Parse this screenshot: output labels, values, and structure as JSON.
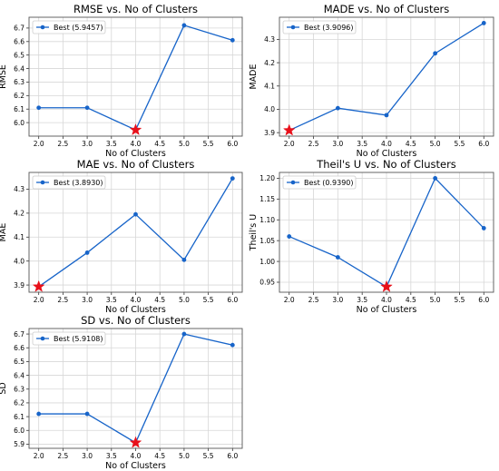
{
  "colors": {
    "line": "#1764c9",
    "star": "#e8101a",
    "grid": "#d7d7d7",
    "frame": "#555555",
    "legend_border": "#cccccc"
  },
  "chart_data": [
    {
      "type": "line",
      "title": "RMSE vs. No of Clusters",
      "xlabel": "No of Clusters",
      "ylabel": "RMSE",
      "x": [
        2.0,
        3.0,
        4.0,
        5.0,
        6.0
      ],
      "series": [
        {
          "name": "Best (5.9457)",
          "values": [
            6.11,
            6.11,
            5.9457,
            6.72,
            6.61
          ]
        }
      ],
      "best": {
        "x": 4.0,
        "y": 5.9457
      },
      "xlim": [
        1.8,
        6.2
      ],
      "ylim": [
        5.9,
        6.78
      ],
      "xticks": [
        "2.0",
        "2.5",
        "3.0",
        "3.5",
        "4.0",
        "4.5",
        "5.0",
        "5.5",
        "6.0"
      ],
      "yticks": [
        "6.0",
        "6.1",
        "6.2",
        "6.3",
        "6.4",
        "6.5",
        "6.6",
        "6.7"
      ],
      "legend": "top-left",
      "grid": true
    },
    {
      "type": "line",
      "title": "MADE vs. No of Clusters",
      "xlabel": "No of Clusters",
      "ylabel": "MADE",
      "x": [
        2.0,
        3.0,
        4.0,
        5.0,
        6.0
      ],
      "series": [
        {
          "name": "Best (3.9096)",
          "values": [
            3.9096,
            4.005,
            3.975,
            4.24,
            4.37
          ]
        }
      ],
      "best": {
        "x": 2.0,
        "y": 3.9096
      },
      "xlim": [
        1.8,
        6.2
      ],
      "ylim": [
        3.885,
        4.395
      ],
      "xticks": [
        "2.0",
        "2.5",
        "3.0",
        "3.5",
        "4.0",
        "4.5",
        "5.0",
        "5.5",
        "6.0"
      ],
      "yticks": [
        "3.9",
        "4.0",
        "4.1",
        "4.2",
        "4.3"
      ],
      "legend": "top-left",
      "grid": true
    },
    {
      "type": "line",
      "title": "MAE vs. No of Clusters",
      "xlabel": "No of Clusters",
      "ylabel": "MAE",
      "x": [
        2.0,
        3.0,
        4.0,
        5.0,
        6.0
      ],
      "series": [
        {
          "name": "Best (3.8930)",
          "values": [
            3.893,
            4.035,
            4.195,
            4.005,
            4.345
          ]
        }
      ],
      "best": {
        "x": 2.0,
        "y": 3.893
      },
      "xlim": [
        1.8,
        6.2
      ],
      "ylim": [
        3.87,
        4.37
      ],
      "xticks": [
        "2.0",
        "2.5",
        "3.0",
        "3.5",
        "4.0",
        "4.5",
        "5.0",
        "5.5",
        "6.0"
      ],
      "yticks": [
        "3.9",
        "4.0",
        "4.1",
        "4.2",
        "4.3"
      ],
      "legend": "top-left",
      "grid": true
    },
    {
      "type": "line",
      "title": "Theil's U vs. No of Clusters",
      "xlabel": "No of Clusters",
      "ylabel": "Theil's U",
      "x": [
        2.0,
        3.0,
        4.0,
        5.0,
        6.0
      ],
      "series": [
        {
          "name": "Best (0.9390)",
          "values": [
            1.06,
            1.01,
            0.939,
            1.2,
            1.08
          ]
        }
      ],
      "best": {
        "x": 4.0,
        "y": 0.939
      },
      "xlim": [
        1.8,
        6.2
      ],
      "ylim": [
        0.926,
        1.214
      ],
      "xticks": [
        "2.0",
        "2.5",
        "3.0",
        "3.5",
        "4.0",
        "4.5",
        "5.0",
        "5.5",
        "6.0"
      ],
      "yticks": [
        "0.95",
        "1.00",
        "1.05",
        "1.10",
        "1.15",
        "1.20"
      ],
      "legend": "top-left",
      "grid": true
    },
    {
      "type": "line",
      "title": "SD vs. No of Clusters",
      "xlabel": "No of Clusters",
      "ylabel": "SD",
      "x": [
        2.0,
        3.0,
        4.0,
        5.0,
        6.0
      ],
      "series": [
        {
          "name": "Best (5.9108)",
          "values": [
            6.12,
            6.12,
            5.9108,
            6.7,
            6.62
          ]
        }
      ],
      "best": {
        "x": 4.0,
        "y": 5.9108
      },
      "xlim": [
        1.8,
        6.2
      ],
      "ylim": [
        5.87,
        6.74
      ],
      "xticks": [
        "2.0",
        "2.5",
        "3.0",
        "3.5",
        "4.0",
        "4.5",
        "5.0",
        "5.5",
        "6.0"
      ],
      "yticks": [
        "5.9",
        "6.0",
        "6.1",
        "6.2",
        "6.3",
        "6.4",
        "6.5",
        "6.6",
        "6.7"
      ],
      "legend": "top-left",
      "grid": true
    }
  ]
}
